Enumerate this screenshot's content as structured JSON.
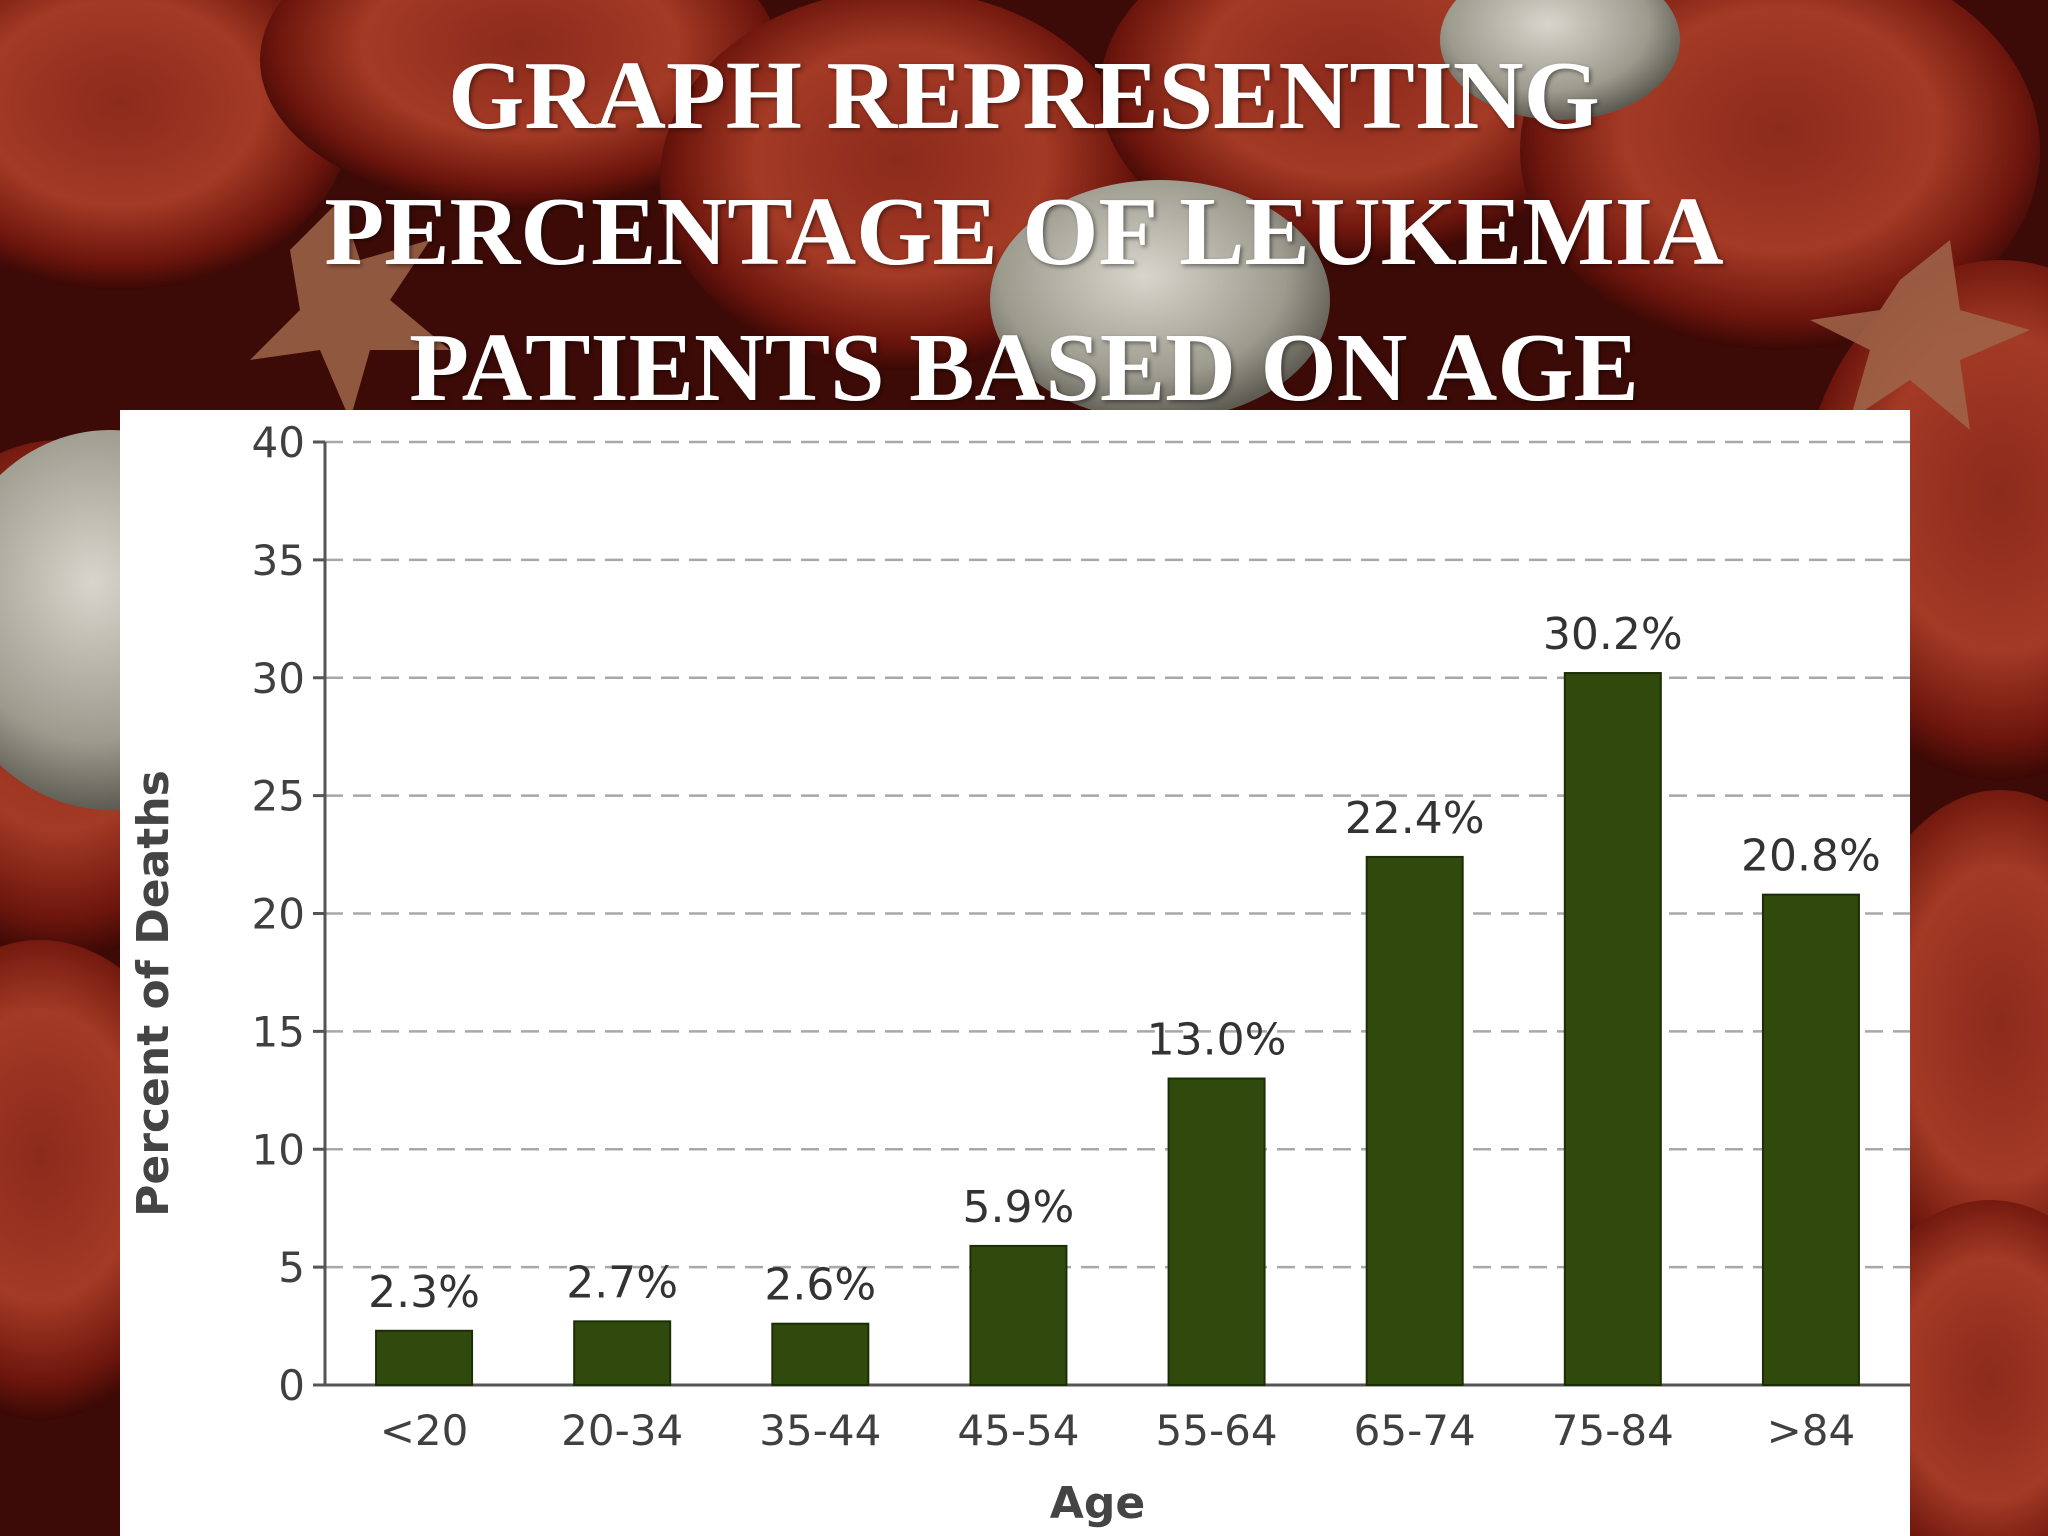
{
  "slide": {
    "title_lines": [
      "GRAPH REPRESENTING",
      "PERCENTAGE OF LEUKEMIA",
      "PATIENTS BASED ON AGE"
    ]
  },
  "colors": {
    "bar": "#2f4a0c",
    "grid": "#a8a8a8",
    "axis": "#555555",
    "background_red": "#7a1a10"
  },
  "chart_data": {
    "type": "bar",
    "categories": [
      "<20",
      "20-34",
      "35-44",
      "45-54",
      "55-64",
      "65-74",
      "75-84",
      ">84"
    ],
    "values": [
      2.3,
      2.7,
      2.6,
      5.9,
      13.0,
      22.4,
      30.2,
      20.8
    ],
    "value_labels": [
      "2.3%",
      "2.7%",
      "2.6%",
      "5.9%",
      "13.0%",
      "22.4%",
      "30.2%",
      "20.8%"
    ],
    "xlabel": "Age",
    "ylabel": "Percent of Deaths",
    "ylim": [
      0,
      40
    ],
    "yticks": [
      0,
      5,
      10,
      15,
      20,
      25,
      30,
      35,
      40
    ],
    "grid": true,
    "grid_style": "dashed",
    "legend": "none"
  }
}
